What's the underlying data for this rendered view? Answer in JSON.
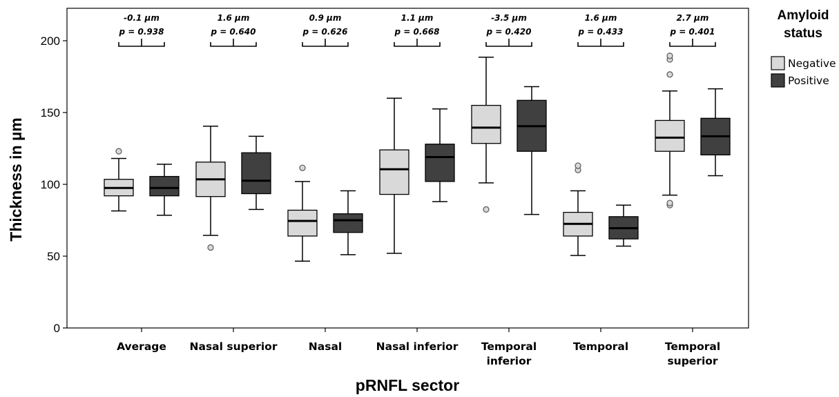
{
  "chart_data": {
    "type": "boxplot",
    "xlabel": "pRNFL sector",
    "ylabel": "Thickness in µm",
    "ylim": [
      0,
      220
    ],
    "yticks": [
      0,
      50,
      100,
      150,
      200
    ],
    "grid": false,
    "legend": {
      "title_lines": [
        "Amyloid",
        "status"
      ],
      "placement": "right",
      "entries": [
        {
          "name": "Negative",
          "color": "#d9d9d9"
        },
        {
          "name": "Positive",
          "color": "#404040"
        }
      ]
    },
    "categories": [
      {
        "lines": [
          "Average"
        ]
      },
      {
        "lines": [
          "Nasal superior"
        ]
      },
      {
        "lines": [
          "Nasal"
        ]
      },
      {
        "lines": [
          "Nasal inferior"
        ]
      },
      {
        "lines": [
          "Temporal",
          "inferior"
        ]
      },
      {
        "lines": [
          "Temporal"
        ]
      },
      {
        "lines": [
          "Temporal",
          "superior"
        ]
      }
    ],
    "annotations": [
      {
        "diff": "-0.1 µm",
        "p": "p = 0.938"
      },
      {
        "diff": "1.6 µm",
        "p": "p = 0.640"
      },
      {
        "diff": "0.9 µm",
        "p": "p = 0.626"
      },
      {
        "diff": "1.1 µm",
        "p": "p = 0.668"
      },
      {
        "diff": "-3.5 µm",
        "p": "p = 0.420"
      },
      {
        "diff": "1.6 µm",
        "p": "p = 0.433"
      },
      {
        "diff": "2.7 µm",
        "p": "p = 0.401"
      }
    ],
    "series": [
      {
        "name": "Negative",
        "color": "#d9d9d9",
        "boxes": [
          {
            "min": 81.5,
            "q1": 92,
            "median": 97.5,
            "q3": 103.5,
            "max": 118,
            "outliers": [
              123
            ]
          },
          {
            "min": 64.5,
            "q1": 91.5,
            "median": 103.5,
            "q3": 115.5,
            "max": 140.5,
            "outliers": [
              56
            ]
          },
          {
            "min": 46.5,
            "q1": 64,
            "median": 74.5,
            "q3": 82,
            "max": 102,
            "outliers": [
              111.5
            ]
          },
          {
            "min": 52,
            "q1": 93,
            "median": 110.5,
            "q3": 124,
            "max": 160,
            "outliers": []
          },
          {
            "min": 101,
            "q1": 128.5,
            "median": 139.5,
            "q3": 155,
            "max": 188.5,
            "outliers": [
              82.5
            ]
          },
          {
            "min": 50.5,
            "q1": 64,
            "median": 72.5,
            "q3": 80.5,
            "max": 95.5,
            "outliers": [
              110,
              113
            ]
          },
          {
            "min": 92.5,
            "q1": 123,
            "median": 132.5,
            "q3": 144.5,
            "max": 165,
            "outliers": [
              85.5,
              87,
              176.5,
              187,
              189.5
            ]
          }
        ]
      },
      {
        "name": "Positive",
        "color": "#404040",
        "boxes": [
          {
            "min": 78.5,
            "q1": 92,
            "median": 97.5,
            "q3": 105.5,
            "max": 114,
            "outliers": []
          },
          {
            "min": 82.5,
            "q1": 93.5,
            "median": 102.5,
            "q3": 122,
            "max": 133.5,
            "outliers": []
          },
          {
            "min": 51,
            "q1": 66.5,
            "median": 75,
            "q3": 79.5,
            "max": 95.5,
            "outliers": []
          },
          {
            "min": 88,
            "q1": 102,
            "median": 119,
            "q3": 128,
            "max": 152.5,
            "outliers": []
          },
          {
            "min": 79,
            "q1": 123,
            "median": 140.5,
            "q3": 158.5,
            "max": 168,
            "outliers": []
          },
          {
            "min": 57,
            "q1": 62,
            "median": 69.5,
            "q3": 77.5,
            "max": 85.5,
            "outliers": []
          },
          {
            "min": 106,
            "q1": 120.5,
            "median": 133.5,
            "q3": 146,
            "max": 166.5,
            "outliers": []
          }
        ]
      }
    ]
  }
}
